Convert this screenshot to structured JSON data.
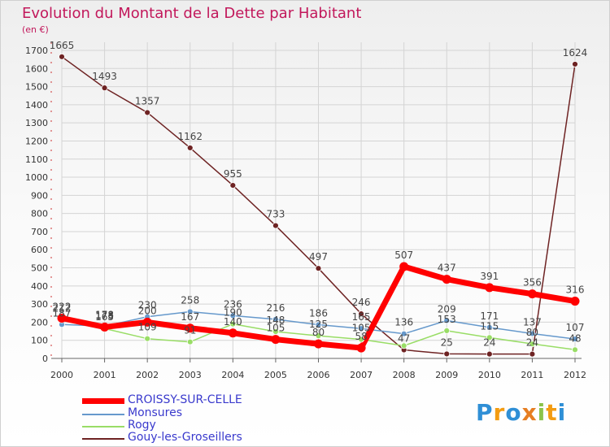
{
  "chart_data": {
    "type": "line",
    "title": "Evolution du Montant de la Dette par Habitant",
    "subtitle": "(en €)",
    "categories": [
      "2000",
      "2001",
      "2002",
      "2003",
      "2004",
      "2005",
      "2006",
      "2007",
      "2008",
      "2009",
      "2010",
      "2011",
      "2012"
    ],
    "ylim": [
      0,
      1700
    ],
    "yticks": [
      0,
      100,
      200,
      300,
      400,
      500,
      600,
      700,
      800,
      900,
      1000,
      1100,
      1200,
      1300,
      1400,
      1500,
      1600,
      1700
    ],
    "series": [
      {
        "name": "CROISSY-SUR-CELLE",
        "color": "#ff0000",
        "values": [
          222,
          173,
          200,
          167,
          140,
          105,
          80,
          58,
          507,
          437,
          391,
          356,
          316
        ],
        "labels": [
          true,
          true,
          true,
          true,
          true,
          true,
          true,
          true,
          true,
          true,
          true,
          true,
          true
        ]
      },
      {
        "name": "Monsures",
        "color": "#6699cc",
        "values": [
          187,
          178,
          230,
          258,
          236,
          216,
          186,
          165,
          136,
          209,
          171,
          137,
          107
        ],
        "labels": [
          true,
          true,
          true,
          true,
          true,
          true,
          true,
          true,
          true,
          true,
          true,
          true,
          true
        ]
      },
      {
        "name": "Rogy",
        "color": "#99dd66",
        "values": [
          212,
          165,
          109,
          91,
          190,
          148,
          125,
          105,
          70,
          153,
          115,
          80,
          48
        ],
        "labels": [
          true,
          true,
          true,
          true,
          true,
          true,
          true,
          true,
          false,
          true,
          true,
          true,
          true
        ]
      },
      {
        "name": "Gouy-les-Groseillers",
        "color": "#6e2323",
        "values": [
          1665,
          1493,
          1357,
          1162,
          955,
          733,
          497,
          246,
          47,
          25,
          24,
          24,
          1624
        ],
        "labels": [
          true,
          true,
          true,
          true,
          true,
          true,
          true,
          true,
          true,
          true,
          true,
          true,
          true
        ]
      }
    ]
  },
  "legend": {
    "items": [
      {
        "label": "CROISSY-SUR-CELLE",
        "color": "#ff0000"
      },
      {
        "label": "Monsures",
        "color": "#6699cc"
      },
      {
        "label": "Rogy",
        "color": "#99dd66"
      },
      {
        "label": "Gouy-les-Groseillers",
        "color": "#6e2323"
      }
    ]
  },
  "logo": {
    "letters": [
      "P",
      "r",
      "o",
      "x",
      "i",
      "t",
      "i"
    ]
  }
}
